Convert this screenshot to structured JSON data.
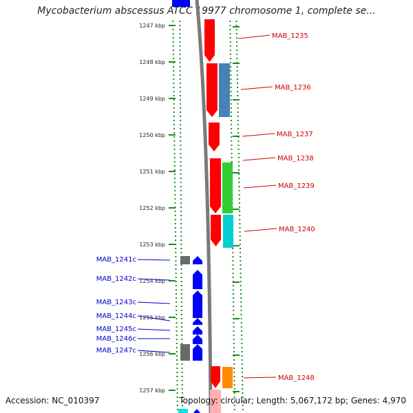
{
  "title": "Mycobacterium abscessus ATCC 19977 chromosome 1, complete se...",
  "footer": {
    "accession": "Accession: NC_010397",
    "summary": "Topology: circular; Length: 5,067,172 bp; Genes: 4,970"
  },
  "ruler": {
    "ticks": [
      "1247 kbp",
      "1248 kbp",
      "1249 kbp",
      "1250 kbp",
      "1251 kbp",
      "1252 kbp",
      "1253 kbp",
      "1254 kbp",
      "1255 kbp",
      "1256 kbp",
      "1257 kbp"
    ]
  },
  "genes_forward": [
    {
      "name": "MAB_1235",
      "color": "#ff0000"
    },
    {
      "name": "MAB_1236",
      "color": "#4682b4"
    },
    {
      "name": "MAB_1237",
      "color": "#ff0000"
    },
    {
      "name": "MAB_1238",
      "color": "#ff0000"
    },
    {
      "name": "MAB_1239",
      "color": "#32cd32"
    },
    {
      "name": "MAB_1240",
      "color": "#00ced1"
    },
    {
      "name": "MAB_1248",
      "color": "#ff8c00"
    }
  ],
  "genes_reverse": [
    {
      "name": "MAB_1241c",
      "color": "#696969"
    },
    {
      "name": "MAB_1242c",
      "color": "#0000ff"
    },
    {
      "name": "MAB_1243c",
      "color": "#0000ff"
    },
    {
      "name": "MAB_1244c",
      "color": "#0000ff"
    },
    {
      "name": "MAB_1245c",
      "color": "#0000ff"
    },
    {
      "name": "MAB_1246c",
      "color": "#0000ff"
    },
    {
      "name": "MAB_1247c",
      "color": "#696969"
    }
  ]
}
